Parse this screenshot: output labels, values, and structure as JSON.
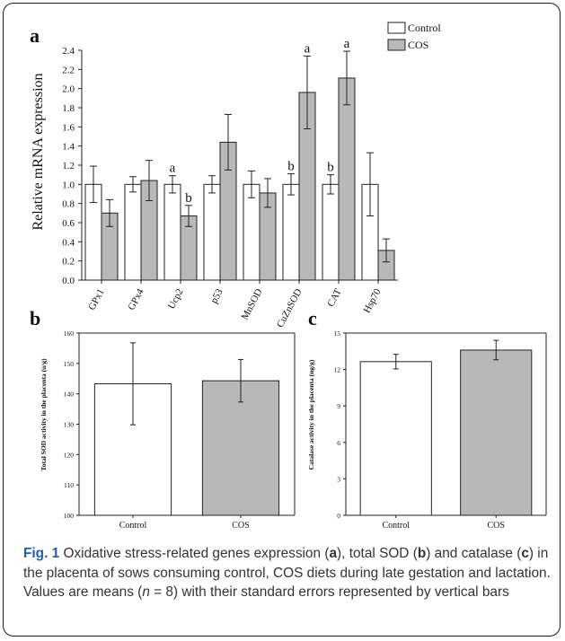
{
  "colors": {
    "control_fill": "#ffffff",
    "cos_fill": "#b8b8b8",
    "stroke": "#222222",
    "caption_label": "#1f5fae",
    "caption_text": "#333333"
  },
  "panel_labels": {
    "a": "a",
    "b": "b",
    "c": "c"
  },
  "legend": {
    "control": "Control",
    "cos": "COS"
  },
  "caption": {
    "fig": "Fig. 1",
    "part1": " Oxidative stress-related genes expression (",
    "a": "a",
    "part2": "), total SOD (",
    "b": "b",
    "part3": ") and catalase (",
    "c": "c",
    "part4": ") in the placenta of sows consuming control, COS diets during late gestation and lactation. Values are means (",
    "n": "n",
    "part5": " = 8) with their standard errors represented by vertical bars"
  },
  "chart_data": [
    {
      "id": "a",
      "type": "bar",
      "categories": [
        "GPx1",
        "GPx4",
        "Ucp2",
        "p53",
        "MnSOD",
        "CuZnSOD",
        "CAT",
        "Hsp70"
      ],
      "series": [
        {
          "name": "Control",
          "values": [
            1.0,
            1.0,
            1.0,
            1.0,
            1.0,
            1.0,
            1.0,
            1.0
          ],
          "errors": [
            0.19,
            0.08,
            0.09,
            0.09,
            0.14,
            0.11,
            0.1,
            0.33
          ]
        },
        {
          "name": "COS",
          "values": [
            0.7,
            1.04,
            0.67,
            1.44,
            0.91,
            1.96,
            2.11,
            0.31
          ],
          "errors": [
            0.14,
            0.21,
            0.11,
            0.29,
            0.15,
            0.38,
            0.28,
            0.12
          ]
        }
      ],
      "annotations": [
        {
          "category": "Ucp2",
          "series": "Control",
          "text": "a"
        },
        {
          "category": "Ucp2",
          "series": "COS",
          "text": "b"
        },
        {
          "category": "CuZnSOD",
          "series": "Control",
          "text": "b"
        },
        {
          "category": "CuZnSOD",
          "series": "COS",
          "text": "a"
        },
        {
          "category": "CAT",
          "series": "Control",
          "text": "b"
        },
        {
          "category": "CAT",
          "series": "COS",
          "text": "a"
        }
      ],
      "ylabel": "Relative mRNA expression",
      "ylim": [
        0,
        2.4
      ],
      "yticks": [
        "0.0",
        "0.2",
        "0.4",
        "0.6",
        "0.8",
        "1.0",
        "1.2",
        "1.4",
        "1.6",
        "1.8",
        "2.0",
        "2.2",
        "2.4"
      ],
      "legend_position": "top-right",
      "grid": false
    },
    {
      "id": "b",
      "type": "bar",
      "categories": [
        "Control",
        "COS"
      ],
      "values": [
        143.3,
        144.3
      ],
      "errors": [
        13.5,
        7.0
      ],
      "ylabel": "Total SOD activity in the placenta (u/g)",
      "ylim": [
        100,
        160
      ],
      "yticks": [
        "100",
        "110",
        "120",
        "130",
        "140",
        "150",
        "160"
      ],
      "grid": false
    },
    {
      "id": "c",
      "type": "bar",
      "categories": [
        "Control",
        "COS"
      ],
      "values": [
        12.65,
        13.6
      ],
      "errors": [
        0.6,
        0.8
      ],
      "ylabel": "Catalase activity in the placenta (ng/g)",
      "ylim": [
        0,
        15
      ],
      "yticks": [
        "0",
        "3",
        "6",
        "9",
        "12",
        "15"
      ],
      "grid": false
    }
  ]
}
